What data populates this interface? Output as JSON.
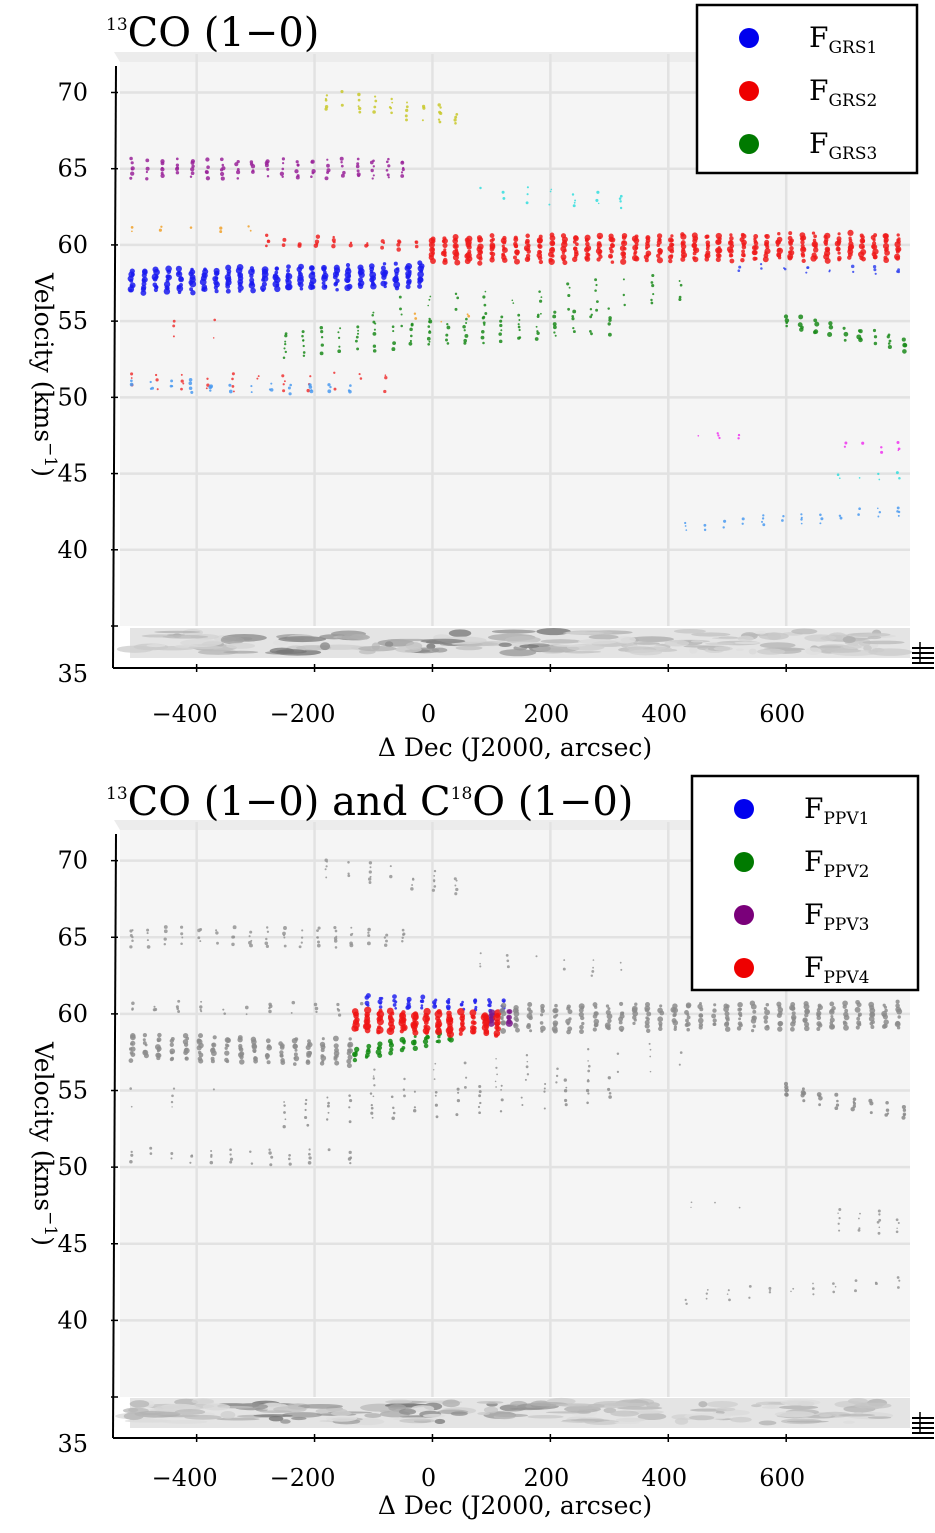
{
  "chart_data": [
    {
      "type": "scatter",
      "title": "CO (1−0)",
      "title_prefix_sup": "13",
      "xlabel": "Δ Dec (J2000, arcsec)",
      "ylabel": "Velocity (kms",
      "ylabel_sup": "−1",
      "ylabel_suffix": ")",
      "xlim": [
        -530,
        810
      ],
      "ylim": [
        35,
        72
      ],
      "xticks": [
        "−400",
        "−200",
        "0",
        "200",
        "400",
        "600"
      ],
      "xtick_values": [
        -400,
        -200,
        0,
        200,
        400,
        600
      ],
      "yticks": [
        "35",
        "40",
        "45",
        "50",
        "55",
        "60",
        "65",
        "70"
      ],
      "ytick_values": [
        35,
        40,
        45,
        50,
        55,
        60,
        65,
        70
      ],
      "grid": true,
      "legend_position": "top-right",
      "legend": [
        {
          "label": "F",
          "sub": "GRS1",
          "color": "#0000ee"
        },
        {
          "label": "F",
          "sub": "GRS2",
          "color": "#ee0000"
        },
        {
          "label": "F",
          "sub": "GRS3",
          "color": "#007a00"
        }
      ],
      "series": [
        {
          "name": "GRS1",
          "color": "#1a1aee",
          "x_range": [
            -510,
            -20
          ],
          "y_start": 57.6,
          "y_end": 58.0,
          "spread": 1.4,
          "density": 1.0,
          "size": 3.0
        },
        {
          "name": "GRS1",
          "color": "#3344ee",
          "x_range": [
            520,
            790
          ],
          "y_start": 58.5,
          "y_end": 58.3,
          "spread": 0.3,
          "density": 0.5,
          "size": 1.6
        },
        {
          "name": "GRS2",
          "color": "#ee1a1a",
          "x_range": [
            0,
            790
          ],
          "y_start": 59.7,
          "y_end": 59.9,
          "spread": 1.6,
          "density": 1.0,
          "size": 2.8
        },
        {
          "name": "GRS2",
          "color": "#ee2222",
          "x_range": [
            -280,
            0
          ],
          "y_start": 60.3,
          "y_end": 60.0,
          "spread": 0.5,
          "density": 0.7,
          "size": 2.0
        },
        {
          "name": "GRS2",
          "color": "#ee3333",
          "x_range": [
            -510,
            -80
          ],
          "y_start": 51.0,
          "y_end": 51.0,
          "spread": 1.0,
          "density": 0.45,
          "size": 1.5
        },
        {
          "name": "GRS2",
          "color": "#ee3333",
          "x_range": [
            -510,
            -370
          ],
          "y_start": 54.5,
          "y_end": 54.5,
          "spread": 1.2,
          "density": 0.35,
          "size": 1.3
        },
        {
          "name": "GRS3",
          "color": "#1a8a1a",
          "x_range": [
            -250,
            300
          ],
          "y_start": 53.5,
          "y_end": 55.0,
          "spread": 1.6,
          "density": 0.65,
          "size": 1.7
        },
        {
          "name": "GRS3",
          "color": "#1a8a1a",
          "x_range": [
            -100,
            420
          ],
          "y_start": 55.5,
          "y_end": 57.2,
          "spread": 1.8,
          "density": 0.45,
          "size": 1.4
        },
        {
          "name": "GRS3",
          "color": "#1a8a1a",
          "x_range": [
            600,
            800
          ],
          "y_start": 55.0,
          "y_end": 53.5,
          "spread": 0.8,
          "density": 0.8,
          "size": 2.2
        },
        {
          "name": "",
          "color": "#992299",
          "x_range": [
            -510,
            -50
          ],
          "y_start": 65.0,
          "y_end": 65.0,
          "spread": 1.1,
          "density": 0.8,
          "size": 1.9
        },
        {
          "name": "",
          "color": "#c8c82a",
          "x_range": [
            -180,
            40
          ],
          "y_start": 69.5,
          "y_end": 68.5,
          "spread": 1.2,
          "density": 0.7,
          "size": 1.6
        },
        {
          "name": "",
          "color": "#33dddd",
          "x_range": [
            80,
            320
          ],
          "y_start": 63.5,
          "y_end": 62.8,
          "spread": 1.0,
          "density": 0.5,
          "size": 1.4
        },
        {
          "name": "",
          "color": "#f0a028",
          "x_range": [
            -510,
            -310
          ],
          "y_start": 61.0,
          "y_end": 61.0,
          "spread": 0.3,
          "density": 0.45,
          "size": 1.4
        },
        {
          "name": "",
          "color": "#f0a028",
          "x_range": [
            -30,
            60
          ],
          "y_start": 55.2,
          "y_end": 55.2,
          "spread": 0.6,
          "density": 0.45,
          "size": 1.4
        },
        {
          "name": "",
          "color": "#4a9af0",
          "x_range": [
            -510,
            -140
          ],
          "y_start": 50.8,
          "y_end": 50.6,
          "spread": 0.6,
          "density": 0.6,
          "size": 1.7
        },
        {
          "name": "",
          "color": "#4a9af0",
          "x_range": [
            430,
            790
          ],
          "y_start": 41.5,
          "y_end": 42.5,
          "spread": 0.6,
          "density": 0.6,
          "size": 1.4
        },
        {
          "name": "",
          "color": "#ee33ee",
          "x_range": [
            450,
            520
          ],
          "y_start": 47.5,
          "y_end": 47.5,
          "spread": 0.2,
          "density": 0.5,
          "size": 1.2
        },
        {
          "name": "",
          "color": "#ee33ee",
          "x_range": [
            700,
            790
          ],
          "y_start": 46.8,
          "y_end": 46.8,
          "spread": 0.6,
          "density": 0.6,
          "size": 1.4
        },
        {
          "name": "",
          "color": "#33dddd",
          "x_range": [
            690,
            790
          ],
          "y_start": 44.8,
          "y_end": 44.8,
          "spread": 0.4,
          "density": 0.6,
          "size": 1.4
        }
      ]
    },
    {
      "type": "scatter",
      "title": "CO (1−0) and C",
      "title_prefix_sup": "13",
      "title_mid_sup": "18",
      "title_end": "O (1−0)",
      "xlabel": "Δ Dec (J2000, arcsec)",
      "ylabel": "Velocity (kms",
      "ylabel_sup": "−1",
      "ylabel_suffix": ")",
      "xlim": [
        -530,
        810
      ],
      "ylim": [
        35,
        72
      ],
      "xticks": [
        "−400",
        "−200",
        "0",
        "200",
        "400",
        "600"
      ],
      "xtick_values": [
        -400,
        -200,
        0,
        200,
        400,
        600
      ],
      "yticks": [
        "35",
        "40",
        "45",
        "50",
        "55",
        "60",
        "65",
        "70"
      ],
      "ytick_values": [
        35,
        40,
        45,
        50,
        55,
        60,
        65,
        70
      ],
      "grid": true,
      "legend_position": "top-right",
      "legend": [
        {
          "label": "F",
          "sub": "PPV1",
          "color": "#0000ee"
        },
        {
          "label": "F",
          "sub": "PPV2",
          "color": "#007a00"
        },
        {
          "label": "F",
          "sub": "PPV3",
          "color": "#7a007a"
        },
        {
          "label": "F",
          "sub": "PPV4",
          "color": "#ee0000"
        }
      ],
      "series": [
        {
          "name": "PPV1",
          "color": "#2222ee",
          "x_range": [
            -110,
            120
          ],
          "y_start": 60.8,
          "y_end": 60.6,
          "spread": 0.6,
          "density": 0.9,
          "size": 2.2
        },
        {
          "name": "PPV2",
          "color": "#128a12",
          "x_range": [
            -130,
            30
          ],
          "y_start": 57.4,
          "y_end": 58.6,
          "spread": 0.6,
          "density": 1.0,
          "size": 2.6
        },
        {
          "name": "PPV3",
          "color": "#7a1a8a",
          "x_range": [
            100,
            130
          ],
          "y_start": 59.8,
          "y_end": 59.8,
          "spread": 0.8,
          "density": 1.0,
          "size": 3.2
        },
        {
          "name": "PPV4",
          "color": "#ee1414",
          "x_range": [
            -130,
            110
          ],
          "y_start": 59.6,
          "y_end": 59.3,
          "spread": 1.3,
          "density": 1.0,
          "size": 3.4
        },
        {
          "name": "",
          "color": "#8c8c8c",
          "x_range": [
            -510,
            -140
          ],
          "y_start": 57.8,
          "y_end": 57.5,
          "spread": 1.5,
          "density": 0.9,
          "size": 2.6
        },
        {
          "name": "",
          "color": "#8c8c8c",
          "x_range": [
            120,
            790
          ],
          "y_start": 59.7,
          "y_end": 59.9,
          "spread": 1.6,
          "density": 0.9,
          "size": 2.6
        },
        {
          "name": "",
          "color": "#909090",
          "x_range": [
            -510,
            -120
          ],
          "y_start": 60.5,
          "y_end": 60.3,
          "spread": 0.6,
          "density": 0.5,
          "size": 1.6
        },
        {
          "name": "",
          "color": "#949494",
          "x_range": [
            -510,
            -50
          ],
          "y_start": 65.0,
          "y_end": 65.0,
          "spread": 1.1,
          "density": 0.7,
          "size": 1.7
        },
        {
          "name": "",
          "color": "#949494",
          "x_range": [
            -180,
            40
          ],
          "y_start": 69.5,
          "y_end": 68.5,
          "spread": 1.2,
          "density": 0.6,
          "size": 1.6
        },
        {
          "name": "",
          "color": "#949494",
          "x_range": [
            80,
            320
          ],
          "y_start": 63.5,
          "y_end": 62.8,
          "spread": 1.0,
          "density": 0.4,
          "size": 1.3
        },
        {
          "name": "",
          "color": "#8c8c8c",
          "x_range": [
            -250,
            300
          ],
          "y_start": 53.5,
          "y_end": 55.0,
          "spread": 1.6,
          "density": 0.55,
          "size": 1.6
        },
        {
          "name": "",
          "color": "#909090",
          "x_range": [
            -100,
            420
          ],
          "y_start": 55.5,
          "y_end": 57.2,
          "spread": 1.8,
          "density": 0.4,
          "size": 1.3
        },
        {
          "name": "",
          "color": "#888888",
          "x_range": [
            600,
            800
          ],
          "y_start": 55.0,
          "y_end": 53.5,
          "spread": 0.8,
          "density": 0.75,
          "size": 2.1
        },
        {
          "name": "",
          "color": "#909090",
          "x_range": [
            -510,
            -140
          ],
          "y_start": 50.8,
          "y_end": 50.6,
          "spread": 0.8,
          "density": 0.6,
          "size": 1.6
        },
        {
          "name": "",
          "color": "#949494",
          "x_range": [
            -510,
            -370
          ],
          "y_start": 54.5,
          "y_end": 54.5,
          "spread": 1.2,
          "density": 0.3,
          "size": 1.2
        },
        {
          "name": "",
          "color": "#949494",
          "x_range": [
            430,
            790
          ],
          "y_start": 41.5,
          "y_end": 42.5,
          "spread": 0.6,
          "density": 0.55,
          "size": 1.3
        },
        {
          "name": "",
          "color": "#949494",
          "x_range": [
            440,
            520
          ],
          "y_start": 47.5,
          "y_end": 47.5,
          "spread": 0.2,
          "density": 0.4,
          "size": 1.1
        },
        {
          "name": "",
          "color": "#949494",
          "x_range": [
            690,
            790
          ],
          "y_start": 46.5,
          "y_end": 46.5,
          "spread": 1.4,
          "density": 0.6,
          "size": 1.3
        }
      ]
    }
  ]
}
